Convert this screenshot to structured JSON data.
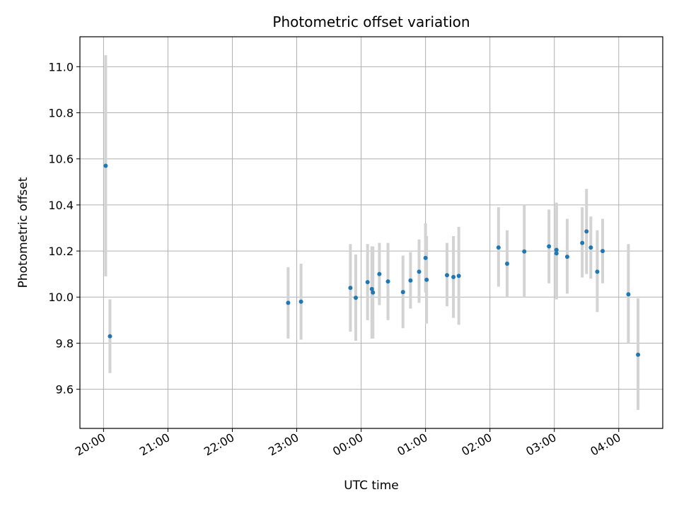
{
  "chart_data": {
    "type": "scatter",
    "title": "Photometric offset variation",
    "xlabel": "UTC time",
    "ylabel": "Photometric offset",
    "xlim": [
      "19:38",
      "04:41"
    ],
    "ylim": [
      9.43,
      11.13
    ],
    "x_ticks": [
      "20:00",
      "21:00",
      "22:00",
      "23:00",
      "00:00",
      "01:00",
      "02:00",
      "03:00",
      "04:00"
    ],
    "y_ticks": [
      "9.6",
      "9.8",
      "10.0",
      "10.2",
      "10.4",
      "10.6",
      "10.8",
      "11.0"
    ],
    "grid": true,
    "colors": {
      "points": "#1f77b4",
      "errorbars": "#d3d3d3",
      "grid": "#b0b0b0"
    },
    "points": [
      {
        "t": "20:02",
        "y": 10.57,
        "lo": 10.09,
        "hi": 11.05
      },
      {
        "t": "20:06",
        "y": 9.83,
        "lo": 9.67,
        "hi": 9.99
      },
      {
        "t": "22:52",
        "y": 9.975,
        "lo": 9.82,
        "hi": 10.13
      },
      {
        "t": "23:04",
        "y": 9.98,
        "lo": 9.815,
        "hi": 10.145
      },
      {
        "t": "23:50",
        "y": 10.04,
        "lo": 9.85,
        "hi": 10.23
      },
      {
        "t": "23:55",
        "y": 9.997,
        "lo": 9.81,
        "hi": 10.185
      },
      {
        "t": "00:06",
        "y": 10.065,
        "lo": 9.9,
        "hi": 10.23
      },
      {
        "t": "00:10",
        "y": 10.035,
        "lo": 9.82,
        "hi": 10.22
      },
      {
        "t": "00:11",
        "y": 10.02,
        "lo": 9.82,
        "hi": 10.22
      },
      {
        "t": "00:17",
        "y": 10.1,
        "lo": 9.965,
        "hi": 10.235
      },
      {
        "t": "00:25",
        "y": 10.068,
        "lo": 9.9,
        "hi": 10.235
      },
      {
        "t": "00:39",
        "y": 10.022,
        "lo": 9.865,
        "hi": 10.18
      },
      {
        "t": "00:46",
        "y": 10.072,
        "lo": 9.95,
        "hi": 10.195
      },
      {
        "t": "00:54",
        "y": 10.11,
        "lo": 9.975,
        "hi": 10.25
      },
      {
        "t": "01:00",
        "y": 10.17,
        "lo": 10.02,
        "hi": 10.32
      },
      {
        "t": "01:01",
        "y": 10.075,
        "lo": 9.885,
        "hi": 10.265
      },
      {
        "t": "01:20",
        "y": 10.095,
        "lo": 9.96,
        "hi": 10.235
      },
      {
        "t": "01:26",
        "y": 10.087,
        "lo": 9.91,
        "hi": 10.265
      },
      {
        "t": "01:31",
        "y": 10.092,
        "lo": 9.88,
        "hi": 10.305
      },
      {
        "t": "02:08",
        "y": 10.215,
        "lo": 10.045,
        "hi": 10.39
      },
      {
        "t": "02:16",
        "y": 10.145,
        "lo": 10.0,
        "hi": 10.29
      },
      {
        "t": "02:32",
        "y": 10.198,
        "lo": 10.0,
        "hi": 10.4
      },
      {
        "t": "02:55",
        "y": 10.22,
        "lo": 10.06,
        "hi": 10.38
      },
      {
        "t": "03:02",
        "y": 10.205,
        "lo": 10.0,
        "hi": 10.41
      },
      {
        "t": "03:02",
        "y": 10.19,
        "lo": 9.99,
        "hi": 10.39
      },
      {
        "t": "03:12",
        "y": 10.175,
        "lo": 10.015,
        "hi": 10.34
      },
      {
        "t": "03:26",
        "y": 10.235,
        "lo": 10.085,
        "hi": 10.39
      },
      {
        "t": "03:30",
        "y": 10.285,
        "lo": 10.1,
        "hi": 10.47
      },
      {
        "t": "03:34",
        "y": 10.215,
        "lo": 10.08,
        "hi": 10.35
      },
      {
        "t": "03:40",
        "y": 10.11,
        "lo": 9.935,
        "hi": 10.29
      },
      {
        "t": "03:45",
        "y": 10.2,
        "lo": 10.06,
        "hi": 10.34
      },
      {
        "t": "04:09",
        "y": 10.012,
        "lo": 9.8,
        "hi": 10.23
      },
      {
        "t": "04:18",
        "y": 9.75,
        "lo": 9.51,
        "hi": 9.995
      }
    ]
  }
}
